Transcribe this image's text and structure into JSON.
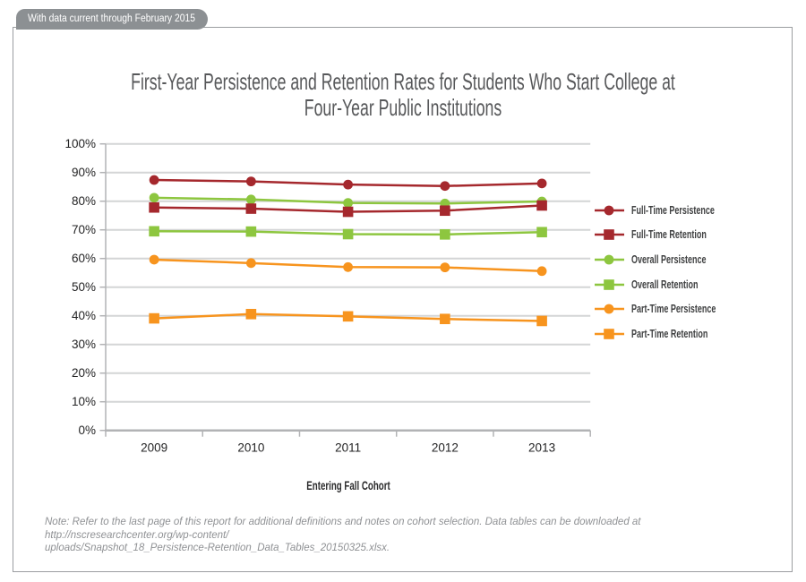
{
  "banner": {
    "text": "With data current through February 2015"
  },
  "chart_data": {
    "type": "line",
    "title": "First-Year Persistence and Retention Rates for Students Who Start College at Four-Year Public Institutions",
    "title_line1": "First-Year Persistence and Retention Rates for Students Who Start College at",
    "title_line2": "Four-Year Public Institutions",
    "xlabel": "Entering Fall Cohort",
    "ylabel": "",
    "categories": [
      "2009",
      "2010",
      "2011",
      "2012",
      "2013"
    ],
    "ylim": [
      0,
      100
    ],
    "y_tick_step": 10,
    "y_tick_labels": [
      "0%",
      "10%",
      "20%",
      "30%",
      "40%",
      "50%",
      "60%",
      "70%",
      "80%",
      "90%",
      "100%"
    ],
    "grid": true,
    "legend_position": "right",
    "series": [
      {
        "name": "Full-Time Persistence",
        "marker": "circle",
        "color": "#a5282d",
        "values": [
          87.4,
          86.9,
          85.8,
          85.3,
          86.2
        ]
      },
      {
        "name": "Full-Time Retention",
        "marker": "square",
        "color": "#a5282d",
        "values": [
          77.8,
          77.4,
          76.3,
          76.7,
          78.5
        ]
      },
      {
        "name": "Overall Persistence",
        "marker": "circle",
        "color": "#8dc63f",
        "values": [
          81.2,
          80.6,
          79.4,
          79.2,
          79.9
        ]
      },
      {
        "name": "Overall Retention",
        "marker": "square",
        "color": "#8dc63f",
        "values": [
          69.5,
          69.4,
          68.5,
          68.4,
          69.2
        ]
      },
      {
        "name": "Part-Time Persistence",
        "marker": "circle",
        "color": "#f7941e",
        "values": [
          59.6,
          58.4,
          57.0,
          56.9,
          55.6
        ]
      },
      {
        "name": "Part-Time Retention",
        "marker": "square",
        "color": "#f7941e",
        "values": [
          39.1,
          40.6,
          39.8,
          38.9,
          38.2
        ]
      }
    ]
  },
  "note": {
    "line1": "Note: Refer to the last page of this report for additional definitions and notes on cohort selection. Data tables can be downloaded at http://nscresearchcenter.org/wp-content/",
    "line2": "uploads/Snapshot_18_Persistence-Retention_Data_Tables_20150325.xlsx."
  },
  "colors": {
    "full_time": "#a5282d",
    "overall": "#8dc63f",
    "part_time": "#f7941e",
    "gridline": "#d4d5d6",
    "axis": "#b2b3b5",
    "title_text": "#57585a",
    "banner_bg": "#8c9093",
    "note_text": "#8f9194"
  }
}
